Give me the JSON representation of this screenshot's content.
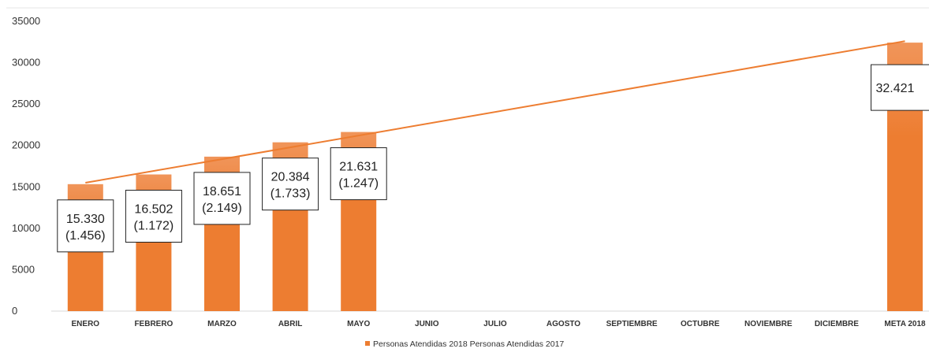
{
  "chart_data": {
    "type": "bar",
    "categories": [
      "ENERO",
      "FEBRERO",
      "MARZO",
      "ABRIL",
      "MAYO",
      "JUNIO",
      "JULIO",
      "AGOSTO",
      "SEPTIEMBRE",
      "OCTUBRE",
      "NOVIEMBRE",
      "DICIEMBRE",
      "META 2018"
    ],
    "values": [
      15330,
      16502,
      18651,
      20384,
      21631,
      null,
      null,
      null,
      null,
      null,
      null,
      null,
      32421
    ],
    "data_labels": [
      "15.330",
      "16.502",
      "18.651",
      "20.384",
      "21.631",
      null,
      null,
      null,
      null,
      null,
      null,
      null,
      "32.421"
    ],
    "data_labels_2017": [
      "(1.456)",
      "(1.172)",
      "(2.149)",
      "(1.733)",
      "(1.247)",
      null,
      null,
      null,
      null,
      null,
      null,
      null,
      null
    ],
    "trendline": {
      "from": 15500,
      "to": 32600
    },
    "yticks": [
      "0",
      "5000",
      "10000",
      "15000",
      "20000",
      "25000",
      "30000",
      "35000"
    ],
    "ylim": [
      0,
      35000
    ],
    "legend": "Personas Atendidas 2018 Personas Atendidas 2017",
    "legend_position": "bottom",
    "colors": {
      "bar": "#ed7d31",
      "bar_top": "#f0955a",
      "trend": "#ed7d31"
    },
    "grid": false
  }
}
